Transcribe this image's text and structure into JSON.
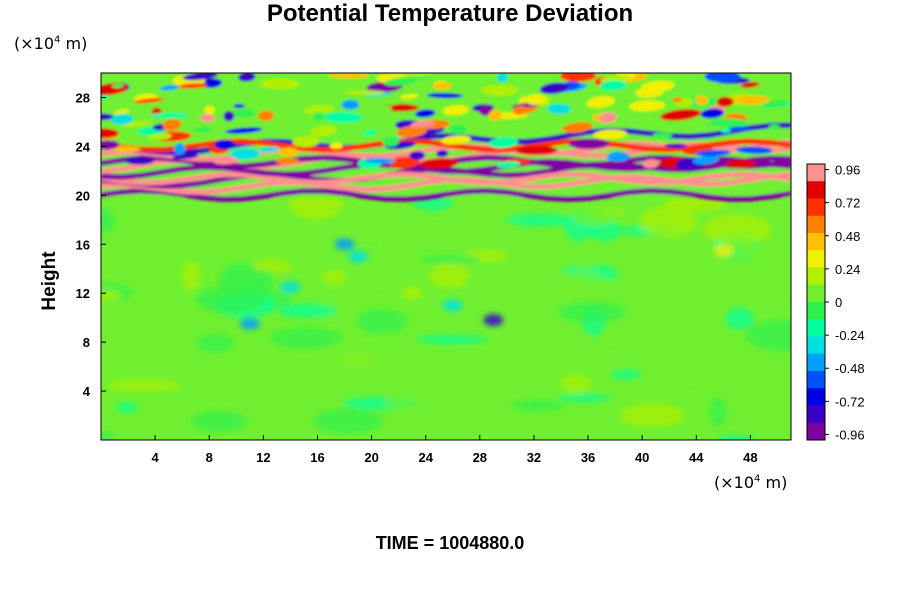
{
  "chart_data": {
    "type": "heatmap",
    "title": "Potential Temperature Deviation",
    "xlabel": "",
    "ylabel": "Height",
    "x_unit_label": "(×10",
    "x_unit_exp": "4",
    "x_unit_suffix": " m)",
    "y_unit_label": "(×10",
    "y_unit_exp": "4",
    "y_unit_suffix": " m)",
    "xlim": [
      0,
      51
    ],
    "ylim": [
      0,
      30
    ],
    "x_ticks": [
      "4",
      "8",
      "12",
      "16",
      "20",
      "24",
      "28",
      "32",
      "36",
      "40",
      "44",
      "48"
    ],
    "x_tick_values": [
      4,
      8,
      12,
      16,
      20,
      24,
      28,
      32,
      36,
      40,
      44,
      48
    ],
    "y_ticks": [
      "4",
      "8",
      "12",
      "16",
      "20",
      "24",
      "28"
    ],
    "y_tick_values": [
      4,
      8,
      12,
      16,
      20,
      24,
      28
    ],
    "colorbar": {
      "range": [
        -1.0,
        1.0
      ],
      "tick_labels": [
        "0.96",
        "0.72",
        "0.48",
        "0.24",
        "0",
        "-0.24",
        "-0.48",
        "-0.72",
        "-0.96"
      ],
      "tick_values": [
        0.96,
        0.72,
        0.48,
        0.24,
        0,
        -0.24,
        -0.48,
        -0.72,
        -0.96
      ],
      "colors": [
        "#7f00a0",
        "#3a00c8",
        "#0000e6",
        "#0050ff",
        "#00a0ff",
        "#00e0e0",
        "#00ffa0",
        "#30f050",
        "#70f030",
        "#b0f000",
        "#f0f000",
        "#ffc000",
        "#ff8000",
        "#ff3000",
        "#e00000",
        "#ff9090"
      ]
    },
    "field_description_zones": [
      {
        "y_range": [
          0,
          19.8
        ],
        "typical_value": 0.0,
        "note": "quiescent, near zero"
      },
      {
        "y_range": [
          19.8,
          24
        ],
        "typical_value_range": [
          -1,
          1
        ],
        "note": "strong alternating bands"
      },
      {
        "y_range": [
          24,
          30
        ],
        "typical_value_range": [
          -0.9,
          0.9
        ],
        "note": "wavy perturbations"
      }
    ]
  },
  "footer": "TIME = 1004880.0"
}
